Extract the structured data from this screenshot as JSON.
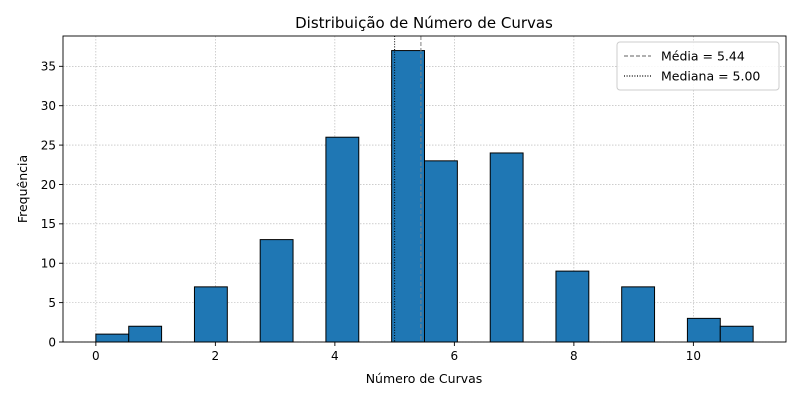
{
  "chart_data": {
    "type": "bar",
    "title": "Distribuição de Número de Curvas",
    "xlabel": "Número de Curvas",
    "ylabel": "Frequência",
    "xlim": [
      -0.55,
      11.55
    ],
    "ylim": [
      0,
      38.85
    ],
    "x_ticks": [
      0,
      2,
      4,
      6,
      8,
      10
    ],
    "y_ticks": [
      0,
      5,
      10,
      15,
      20,
      25,
      30,
      35
    ],
    "grid": true,
    "bar_color": "#1f77b4",
    "bar_edge_color": "#000000",
    "bins": [
      {
        "x0": 0.0,
        "x1": 0.55,
        "count": 1
      },
      {
        "x0": 0.55,
        "x1": 1.1,
        "count": 2
      },
      {
        "x0": 1.65,
        "x1": 2.2,
        "count": 7
      },
      {
        "x0": 2.75,
        "x1": 3.3,
        "count": 13
      },
      {
        "x0": 3.85,
        "x1": 4.4,
        "count": 26
      },
      {
        "x0": 4.95,
        "x1": 5.5,
        "count": 37
      },
      {
        "x0": 5.5,
        "x1": 6.05,
        "count": 23
      },
      {
        "x0": 6.6,
        "x1": 7.15,
        "count": 24
      },
      {
        "x0": 7.7,
        "x1": 8.25,
        "count": 9
      },
      {
        "x0": 8.8,
        "x1": 9.35,
        "count": 7
      },
      {
        "x0": 9.9,
        "x1": 10.45,
        "count": 3
      },
      {
        "x0": 10.45,
        "x1": 11.0,
        "count": 2
      }
    ],
    "reference_lines": [
      {
        "name": "Média = 5.44",
        "value": 5.44,
        "style": "dashed",
        "color": "#808080"
      },
      {
        "name": "Mediana = 5.00",
        "value": 5.0,
        "style": "dotted",
        "color": "#000000"
      }
    ],
    "legend_position": "top-right"
  }
}
